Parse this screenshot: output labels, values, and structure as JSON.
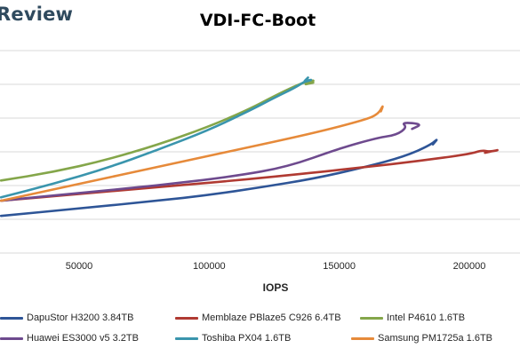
{
  "brand": "Review",
  "chart_data": {
    "type": "line",
    "title": "VDI-FC-Boot",
    "xlabel": "IOPS",
    "ylabel": "",
    "xlim": [
      20000,
      215000
    ],
    "ylim": [
      0,
      7
    ],
    "x_ticks": [
      50000,
      100000,
      150000,
      200000
    ],
    "x_tick_labels": [
      "50000",
      "100000",
      "150000",
      "200000"
    ],
    "y_gridlines": [
      1,
      2,
      3,
      4,
      5,
      6,
      7
    ],
    "grid": true,
    "legend_position": "bottom",
    "series": [
      {
        "name": "DapuStor H3200 3.84TB",
        "color": "#2e5597",
        "x": [
          20000,
          50000,
          80000,
          100000,
          120000,
          140000,
          160000,
          175000,
          185000,
          188000,
          186000
        ],
        "y": [
          2.1,
          2.32,
          2.55,
          2.72,
          2.95,
          3.2,
          3.55,
          3.86,
          4.2,
          4.4,
          4.22
        ]
      },
      {
        "name": "Memblaze PBlaze5 C926 6.4TB",
        "color": "#b03a32",
        "x": [
          20000,
          50000,
          80000,
          110000,
          140000,
          160000,
          180000,
          200000,
          205000,
          208000,
          212000,
          206000
        ],
        "y": [
          2.55,
          2.75,
          2.95,
          3.15,
          3.38,
          3.55,
          3.72,
          3.93,
          4.05,
          4.0,
          4.07,
          3.97
        ]
      },
      {
        "name": "Intel P4610 1.6TB",
        "color": "#84a64a",
        "x": [
          20000,
          40000,
          60000,
          80000,
          100000,
          115000,
          125000,
          133000,
          138000,
          141000,
          136000,
          140000
        ],
        "y": [
          3.15,
          3.4,
          3.75,
          4.2,
          4.75,
          5.25,
          5.65,
          5.95,
          6.1,
          6.12,
          5.98,
          6.05
        ]
      },
      {
        "name": "Huawei ES3000 v5 3.2TB",
        "color": "#6e4a8e",
        "x": [
          20000,
          50000,
          80000,
          110000,
          130000,
          150000,
          165000,
          172000,
          176000,
          174000,
          182000,
          178000
        ],
        "y": [
          2.55,
          2.78,
          3.0,
          3.28,
          3.55,
          4.1,
          4.42,
          4.5,
          4.72,
          4.88,
          4.82,
          4.68
        ]
      },
      {
        "name": "Toshiba PX04 1.6TB",
        "color": "#3a95ad",
        "x": [
          20000,
          40000,
          60000,
          80000,
          100000,
          115000,
          125000,
          133000,
          137000,
          140000,
          136000,
          138000
        ],
        "y": [
          2.65,
          3.05,
          3.5,
          4.05,
          4.65,
          5.2,
          5.6,
          5.9,
          6.1,
          6.15,
          6.05,
          6.2
        ]
      },
      {
        "name": "Samsung PM1725a 1.6TB",
        "color": "#e68a3a",
        "x": [
          20000,
          50000,
          80000,
          110000,
          140000,
          160000,
          165000,
          167000,
          166000
        ],
        "y": [
          2.55,
          3.05,
          3.55,
          4.05,
          4.55,
          4.95,
          5.12,
          5.4,
          5.2
        ]
      }
    ]
  }
}
